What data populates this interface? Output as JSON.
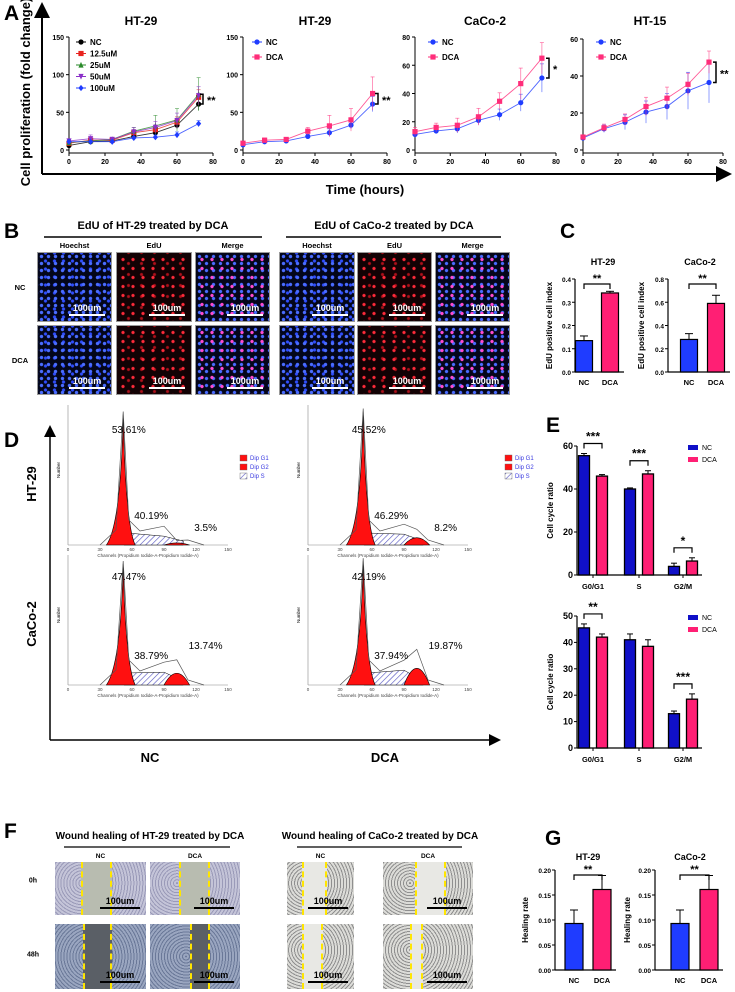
{
  "panel_labels": [
    "A",
    "B",
    "C",
    "D",
    "E",
    "F",
    "G"
  ],
  "panel_a": {
    "ylabel": "Cell proliferation (fold change)",
    "xlabel": "Time (hours)"
  },
  "panel_b": {
    "titles": [
      "EdU of HT-29 treated by DCA",
      "EdU of CaCo-2 treated by DCA"
    ],
    "columns": [
      "Hoechst",
      "EdU",
      "Merge"
    ],
    "rows": [
      "NC",
      "DCA"
    ],
    "scale": "100um"
  },
  "panel_d": {
    "rows": [
      "HT-29",
      "CaCo-2"
    ],
    "columns": [
      "NC",
      "DCA"
    ],
    "ylabel": "Number",
    "xlabel": "Channels (Propidium Iodide-A-Propidium Iodide-A)",
    "legend": [
      "Dip G1",
      "Dip G2",
      "Dip S"
    ],
    "xticks": [
      "0",
      "30",
      "60",
      "90",
      "120",
      "150"
    ],
    "histograms": [
      {
        "g1": "53.61%",
        "s": "40.19%",
        "g2": "3.5%"
      },
      {
        "g1": "45.52%",
        "s": "46.29%",
        "g2": "8.2%"
      },
      {
        "g1": "47.47%",
        "s": "38.79%",
        "g2": "13.74%"
      },
      {
        "g1": "42.19%",
        "s": "37.94%",
        "g2": "19.87%"
      }
    ]
  },
  "panel_f": {
    "titles": [
      "Wound healing of HT-29 treated by DCA",
      "Wound healing of CaCo-2 treated by DCA"
    ],
    "columns": [
      "NC",
      "DCA"
    ],
    "rows": [
      "0h",
      "48h"
    ],
    "scale": "100um"
  },
  "colors": {
    "nc_blue": "#1f3cff",
    "dca_pink": "#ff1f74",
    "e_nc": "#1010c8"
  },
  "chart_data": [
    {
      "id": "a1",
      "type": "line",
      "title": "HT-29",
      "x": [
        0,
        12,
        24,
        36,
        48,
        60,
        72
      ],
      "xlim": [
        0,
        80
      ],
      "xticks": [
        0,
        20,
        40,
        60,
        80
      ],
      "ylim": [
        0,
        150
      ],
      "yticks": [
        0,
        50,
        100,
        150
      ],
      "series": [
        {
          "name": "NC",
          "color": "#000000",
          "marker": "circle",
          "values": [
            6,
            11,
            12,
            18,
            23,
            33,
            61
          ],
          "errors": [
            2,
            2,
            2,
            3,
            4,
            5,
            8
          ]
        },
        {
          "name": "12.5uM",
          "color": "#e8231f",
          "marker": "square",
          "values": [
            9,
            13,
            13,
            23,
            27,
            37,
            70
          ],
          "errors": [
            2,
            3,
            2,
            4,
            5,
            7,
            10
          ]
        },
        {
          "name": "25uM",
          "color": "#2a8a2a",
          "marker": "triangle",
          "values": [
            10,
            12,
            14,
            25,
            32,
            40,
            74
          ],
          "errors": [
            2,
            3,
            2,
            5,
            14,
            15,
            22
          ]
        },
        {
          "name": "50uM",
          "color": "#8b2fc9",
          "marker": "triangle-down",
          "values": [
            12,
            15,
            14,
            24,
            30,
            39,
            72
          ],
          "errors": [
            2,
            5,
            3,
            6,
            8,
            10,
            12
          ]
        },
        {
          "name": "100uM",
          "color": "#1f3cff",
          "marker": "diamond",
          "values": [
            11,
            11,
            11,
            16,
            17,
            20,
            35
          ],
          "errors": [
            2,
            2,
            2,
            2,
            3,
            4,
            4
          ]
        }
      ],
      "annotation": "**"
    },
    {
      "id": "a2",
      "type": "line",
      "title": "HT-29",
      "x": [
        0,
        12,
        24,
        36,
        48,
        60,
        72
      ],
      "xlim": [
        0,
        80
      ],
      "xticks": [
        0,
        20,
        40,
        60,
        80
      ],
      "ylim": [
        0,
        150
      ],
      "yticks": [
        0,
        50,
        100,
        150
      ],
      "series": [
        {
          "name": "NC",
          "color": "#1f3cff",
          "marker": "circle",
          "values": [
            7,
            11,
            12,
            18,
            23,
            33,
            61
          ],
          "errors": [
            2,
            2,
            2,
            3,
            5,
            5,
            10
          ]
        },
        {
          "name": "DCA",
          "color": "#ff2d7a",
          "marker": "square",
          "values": [
            9,
            13,
            14,
            25,
            32,
            40,
            75
          ],
          "errors": [
            2,
            3,
            2,
            5,
            14,
            15,
            22
          ]
        }
      ],
      "annotation": "**"
    },
    {
      "id": "a3",
      "type": "line",
      "title": "CaCo-2",
      "x": [
        0,
        12,
        24,
        36,
        48,
        60,
        72
      ],
      "xlim": [
        0,
        80
      ],
      "xticks": [
        0,
        20,
        40,
        60,
        80
      ],
      "ylim": [
        0,
        80
      ],
      "yticks": [
        0,
        20,
        40,
        60,
        80
      ],
      "series": [
        {
          "name": "NC",
          "color": "#1f3cff",
          "marker": "circle",
          "values": [
            11,
            13.5,
            15,
            21,
            25,
            33.5,
            51
          ],
          "errors": [
            2,
            2,
            3,
            3,
            4,
            6,
            10
          ]
        },
        {
          "name": "DCA",
          "color": "#ff2d7a",
          "marker": "square",
          "values": [
            13,
            16,
            17.5,
            23.5,
            34.5,
            47,
            65
          ],
          "errors": [
            3,
            3,
            5,
            6,
            6,
            11,
            11
          ]
        }
      ],
      "annotation": "*"
    },
    {
      "id": "a4",
      "type": "line",
      "title": "HT-15",
      "x": [
        0,
        12,
        24,
        36,
        48,
        60,
        72
      ],
      "xlim": [
        0,
        80
      ],
      "xticks": [
        0,
        20,
        40,
        60,
        80
      ],
      "ylim": [
        0,
        60
      ],
      "yticks": [
        0,
        20,
        40,
        60
      ],
      "series": [
        {
          "name": "NC",
          "color": "#1f3cff",
          "marker": "circle",
          "values": [
            6.5,
            11.5,
            15,
            20.5,
            23.5,
            32,
            36.5
          ],
          "errors": [
            1,
            2,
            4,
            6,
            7,
            10,
            11
          ]
        },
        {
          "name": "DCA",
          "color": "#ff2d7a",
          "marker": "square",
          "values": [
            7,
            12,
            16.5,
            23.5,
            28,
            35.5,
            47.5
          ],
          "errors": [
            1,
            2,
            3,
            5,
            6,
            6,
            6
          ]
        }
      ],
      "annotation": "**"
    },
    {
      "id": "c1",
      "type": "bar",
      "title": "HT-29",
      "ylabel": "EdU positive cell index",
      "categories": [
        "NC",
        "DCA"
      ],
      "values": [
        0.135,
        0.34
      ],
      "errors": [
        0.02,
        0.007
      ],
      "colors": [
        "#1f3cff",
        "#ff1f74"
      ],
      "ylim": [
        0,
        0.4
      ],
      "yticks": [
        "0.0",
        "0.1",
        "0.2",
        "0.3",
        "0.4"
      ],
      "annotation": "**"
    },
    {
      "id": "c2",
      "type": "bar",
      "title": "CaCo-2",
      "ylabel": "EdU positive cell index",
      "categories": [
        "NC",
        "DCA"
      ],
      "values": [
        0.28,
        0.59
      ],
      "errors": [
        0.05,
        0.07
      ],
      "colors": [
        "#1f3cff",
        "#ff1f74"
      ],
      "ylim": [
        0,
        0.8
      ],
      "yticks": [
        "0.0",
        "0.2",
        "0.4",
        "0.6",
        "0.8"
      ],
      "annotation": "**"
    },
    {
      "id": "e1",
      "type": "bar",
      "ylabel": "Cell cycle ratio",
      "categories": [
        "G0/G1",
        "S",
        "G2/M"
      ],
      "ylim": [
        0,
        60
      ],
      "yticks": [
        "0",
        "20",
        "40",
        "60"
      ],
      "series": [
        {
          "name": "NC",
          "color": "#1010c8",
          "values": [
            55.5,
            40,
            4
          ],
          "errors": [
            1,
            0.5,
            1.5
          ]
        },
        {
          "name": "DCA",
          "color": "#ff1f74",
          "values": [
            46,
            47,
            6.5
          ],
          "errors": [
            0.7,
            1.5,
            1.5
          ]
        }
      ],
      "annotations": [
        "***",
        "***",
        "*"
      ]
    },
    {
      "id": "e2",
      "type": "bar",
      "ylabel": "Cell cycle ratio",
      "categories": [
        "G0/G1",
        "S",
        "G2/M"
      ],
      "ylim": [
        0,
        50
      ],
      "yticks": [
        "0",
        "10",
        "20",
        "30",
        "40",
        "50"
      ],
      "series": [
        {
          "name": "NC",
          "color": "#1010c8",
          "values": [
            45.5,
            41,
            13
          ],
          "errors": [
            1.5,
            2.2,
            1
          ]
        },
        {
          "name": "DCA",
          "color": "#ff1f74",
          "values": [
            42,
            38.5,
            18.5
          ],
          "errors": [
            1.2,
            2.5,
            2
          ]
        }
      ],
      "annotations": [
        "**",
        "",
        "***"
      ]
    },
    {
      "id": "g1",
      "type": "bar",
      "title": "HT-29",
      "ylabel": "Healing rate",
      "categories": [
        "NC",
        "DCA"
      ],
      "values": [
        0.093,
        0.161
      ],
      "errors": [
        0.027,
        0.028
      ],
      "colors": [
        "#1f3cff",
        "#ff1f74"
      ],
      "ylim": [
        0,
        0.2
      ],
      "yticks": [
        "0.00",
        "0.05",
        "0.10",
        "0.15",
        "0.20"
      ],
      "annotation": "**"
    },
    {
      "id": "g2",
      "type": "bar",
      "title": "CaCo-2",
      "ylabel": "Healing rate",
      "categories": [
        "NC",
        "DCA"
      ],
      "values": [
        0.093,
        0.161
      ],
      "errors": [
        0.027,
        0.028
      ],
      "colors": [
        "#1f3cff",
        "#ff1f74"
      ],
      "ylim": [
        0,
        0.2
      ],
      "yticks": [
        "0.00",
        "0.05",
        "0.10",
        "0.15",
        "0.20"
      ],
      "annotation": "**"
    }
  ]
}
